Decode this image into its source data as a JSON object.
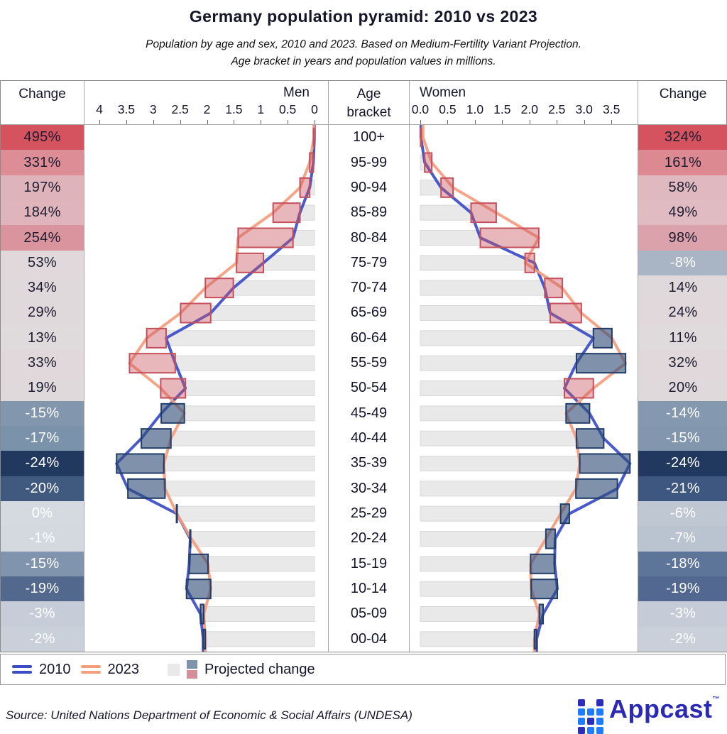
{
  "title": "Germany population pyramid: 2010 vs 2023",
  "subtitle_line1": "Population by age and sex, 2010 and 2023. Based on Medium-Fertility Variant Projection.",
  "subtitle_line2": "Age bracket in years and population values in millions.",
  "header": {
    "change_left": "Change",
    "men": "Men",
    "age_line1": "Age",
    "age_line2": "bracket",
    "women": "Women",
    "change_right": "Change"
  },
  "axes": {
    "men_tick_labels": [
      "4",
      "3.5",
      "3",
      "2.5",
      "2",
      "1.5",
      "1",
      "0.5",
      "0"
    ],
    "men_tick_values": [
      4,
      3.5,
      3,
      2.5,
      2,
      1.5,
      1,
      0.5,
      0
    ],
    "women_tick_labels": [
      "0.0",
      "0.5",
      "1.0",
      "1.5",
      "2.0",
      "2.5",
      "3.0",
      "3.5"
    ],
    "women_tick_values": [
      0,
      0.5,
      1,
      1.5,
      2,
      2.5,
      3,
      3.5
    ]
  },
  "chart_data": {
    "type": "population-pyramid",
    "units": "millions",
    "age_brackets": [
      "100+",
      "95-99",
      "90-94",
      "85-89",
      "80-84",
      "75-79",
      "70-74",
      "65-69",
      "60-64",
      "55-59",
      "50-54",
      "45-49",
      "40-44",
      "35-39",
      "30-34",
      "25-29",
      "20-24",
      "15-19",
      "10-14",
      "05-09",
      "00-04"
    ],
    "men": {
      "v2010": [
        0.002,
        0.021,
        0.09,
        0.27,
        0.4,
        0.95,
        1.51,
        1.93,
        2.76,
        2.59,
        2.4,
        2.85,
        3.22,
        3.68,
        3.47,
        2.56,
        2.31,
        2.33,
        2.38,
        2.12,
        2.07
      ],
      "v2023": [
        0.012,
        0.09,
        0.27,
        0.77,
        1.42,
        1.45,
        2.03,
        2.49,
        3.12,
        3.44,
        2.86,
        2.42,
        2.67,
        2.8,
        2.78,
        2.56,
        2.29,
        1.98,
        1.93,
        2.06,
        2.03
      ],
      "change": [
        "495%",
        "331%",
        "197%",
        "184%",
        "254%",
        "53%",
        "34%",
        "29%",
        "13%",
        "33%",
        "19%",
        "-15%",
        "-17%",
        "-24%",
        "-20%",
        "0%",
        "-1%",
        "-15%",
        "-19%",
        "-3%",
        "-2%"
      ],
      "box": [
        "red",
        "red",
        "red",
        "red",
        "red",
        "red",
        "red",
        "red",
        "red",
        "red",
        "red",
        "blue",
        "blue",
        "blue",
        "blue",
        "blue",
        "blue",
        "blue",
        "blue",
        "blue",
        "blue"
      ],
      "cell_bg": [
        "#d5525f",
        "#dd8d96",
        "#dfb3ba",
        "#dfb5bb",
        "#da949e",
        "#e0d8da",
        "#e0d9db",
        "#e0d9db",
        "#dfdadc",
        "#e0d8da",
        "#dfd9db",
        "#8297ae",
        "#7b92ab",
        "#21395f",
        "#40597f",
        "#d5dae1",
        "#d4d9e0",
        "#8095ad",
        "#52688c",
        "#c6cdd8",
        "#c9d0da"
      ],
      "cell_fg": [
        "dark",
        "dark",
        "dark",
        "dark",
        "dark",
        "dark",
        "dark",
        "dark",
        "dark",
        "dark",
        "dark",
        "white",
        "white",
        "white",
        "white",
        "white",
        "white",
        "white",
        "white",
        "white",
        "white"
      ]
    },
    "women": {
      "v2010": [
        0.012,
        0.08,
        0.38,
        0.93,
        1.1,
        2.09,
        2.28,
        2.38,
        3.17,
        2.86,
        2.64,
        3.1,
        3.36,
        3.84,
        3.61,
        2.73,
        2.47,
        2.46,
        2.51,
        2.25,
        2.13
      ],
      "v2023": [
        0.05,
        0.21,
        0.6,
        1.39,
        2.17,
        1.92,
        2.6,
        2.95,
        3.51,
        3.76,
        3.17,
        2.67,
        2.86,
        2.92,
        2.85,
        2.57,
        2.3,
        2.02,
        2.03,
        2.18,
        2.09
      ],
      "change": [
        "324%",
        "161%",
        "58%",
        "49%",
        "98%",
        "-8%",
        "14%",
        "24%",
        "11%",
        "32%",
        "20%",
        "-14%",
        "-15%",
        "-24%",
        "-21%",
        "-6%",
        "-7%",
        "-18%",
        "-19%",
        "-3%",
        "-2%"
      ],
      "box": [
        "red",
        "red",
        "red",
        "red",
        "red",
        "red",
        "red",
        "red",
        "blue",
        "blue",
        "red",
        "blue",
        "blue",
        "blue",
        "blue",
        "blue",
        "blue",
        "blue",
        "blue",
        "blue",
        "blue"
      ],
      "cell_bg": [
        "#d5525f",
        "#dc8992",
        "#dfb9bf",
        "#e0bcc2",
        "#dba2ab",
        "#a9b5c4",
        "#e0d9db",
        "#e0d8da",
        "#dfdadc",
        "#e0d8da",
        "#dfd9db",
        "#8499b0",
        "#8297ae",
        "#21395f",
        "#3d5781",
        "#bfc7d3",
        "#bac3d0",
        "#5d7598",
        "#526890",
        "#c5ccd7",
        "#c9d0da"
      ],
      "cell_fg": [
        "dark",
        "dark",
        "dark",
        "dark",
        "dark",
        "white",
        "dark",
        "dark",
        "dark",
        "dark",
        "dark",
        "white",
        "white",
        "white",
        "white",
        "white",
        "white",
        "white",
        "white",
        "white",
        "white"
      ]
    }
  },
  "colors": {
    "line2010": "#3b4cc7",
    "line2023": "#f59c7d",
    "bar_fill": "#e9e9e9",
    "bar_stroke": "#d8d8d8",
    "box_red_fill": "rgba(201,84,96,0.42)",
    "box_red_stroke": "#c4505b",
    "box_blue_fill": "rgba(49,78,119,0.62)",
    "box_blue_stroke": "#223e68",
    "text_dark": "#1c1c30",
    "text_white": "#ffffff",
    "brand_bright": "#1f7bff",
    "brand_dark": "#2d2dbb",
    "brand_text": "#2a2ab5"
  },
  "legend": {
    "y2010": "2010",
    "y2023": "2023",
    "projected": "Projected change"
  },
  "footer": {
    "source": "Source: United Nations Department of Economic & Social Affairs (UNDESA)",
    "brand": "Appcast",
    "tm": "™"
  },
  "logo_pattern": [
    [
      "d",
      "b",
      "b",
      "d"
    ],
    [
      "",
      "b",
      "d",
      "b"
    ],
    [
      "d",
      "b",
      "b",
      "b"
    ]
  ]
}
